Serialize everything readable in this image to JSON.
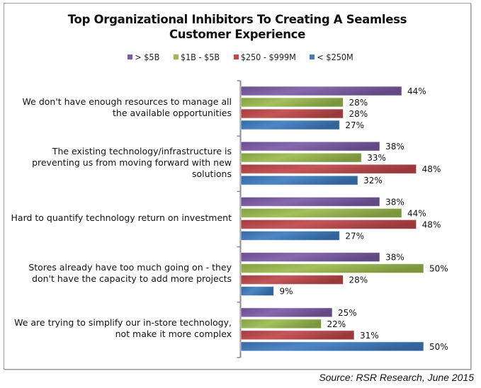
{
  "chart_data": {
    "type": "bar",
    "orientation": "horizontal",
    "title": "Top Organizational Inhibitors To Creating A Seamless Customer Experience",
    "title_lines": [
      "Top Organizational Inhibitors To Creating A Seamless",
      "Customer Experience"
    ],
    "xlabel": "",
    "ylabel": "",
    "xlim": [
      0,
      50
    ],
    "grid": false,
    "legend_position": "top",
    "value_suffix": "%",
    "categories": [
      "We don't have enough resources to manage all the available opportunities",
      "The existing technology/infrastructure is preventing us from moving forward with new solutions",
      "Hard to quantify technology return on investment",
      "Stores already have too much going on - they don't have the capacity to add more projects",
      "We are trying to simplify our in-store technology, not make it more complex"
    ],
    "category_lines": [
      [
        "We don't have enough resources to manage all",
        "the available opportunities"
      ],
      [
        "The existing technology/infrastructure is",
        "preventing us from moving forward with new",
        "solutions"
      ],
      [
        "Hard to quantify technology return on investment"
      ],
      [
        "Stores already have too much going on - they",
        "don't have the capacity to add more projects"
      ],
      [
        "We are trying to simplify our in-store technology,",
        "not make it more complex"
      ]
    ],
    "series": [
      {
        "name": "> $5B",
        "color": "#7b5ca6",
        "values": [
          44,
          38,
          38,
          38,
          25
        ]
      },
      {
        "name": "$1B - $5B",
        "color": "#9bbb4e",
        "values": [
          28,
          33,
          44,
          50,
          22
        ]
      },
      {
        "name": "$250 - $999M",
        "color": "#c0474a",
        "values": [
          28,
          48,
          48,
          28,
          31
        ]
      },
      {
        "name": "< $250M",
        "color": "#3f7cc0",
        "values": [
          27,
          32,
          27,
          9,
          50
        ]
      }
    ],
    "source": "Source: RSR Research, June 2015"
  }
}
